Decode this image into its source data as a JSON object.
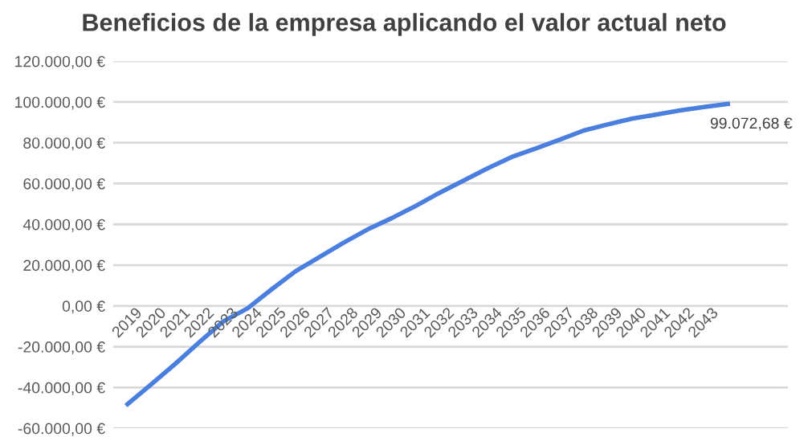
{
  "chart_data": {
    "type": "line",
    "title": "Beneficios de la empresa aplicando el valor actual neto",
    "categories": [
      "2019",
      "2020",
      "2021",
      "2022",
      "2023",
      "2024",
      "2025",
      "2026",
      "2027",
      "2028",
      "2029",
      "2030",
      "2031",
      "2032",
      "2033",
      "2034",
      "2035",
      "2036",
      "2037",
      "2038",
      "2039",
      "2040",
      "2041",
      "2042",
      "2043",
      null
    ],
    "series": [
      {
        "color": "#4a7fe0",
        "values": [
          -48200,
          -38300,
          -28300,
          -17700,
          -7500,
          -1200,
          8100,
          17000,
          24000,
          31000,
          37500,
          43000,
          49000,
          55500,
          61500,
          67500,
          73000,
          77200,
          81500,
          86000,
          89000,
          91800,
          93800,
          95800,
          97500,
          99072.68
        ],
        "value_labels": [
          null,
          null,
          null,
          null,
          null,
          null,
          null,
          null,
          null,
          null,
          null,
          null,
          null,
          null,
          null,
          null,
          null,
          null,
          null,
          null,
          null,
          null,
          null,
          null,
          null,
          "99.072,68 €"
        ]
      }
    ],
    "ylim": [
      -60000,
      120000
    ],
    "yticks": [
      {
        "value": -60000,
        "label": "-60.000,00 €"
      },
      {
        "value": -40000,
        "label": "-40.000,00 €"
      },
      {
        "value": -20000,
        "label": "-20.000,00 €"
      },
      {
        "value": 0,
        "label": "0,00 €"
      },
      {
        "value": 20000,
        "label": "20.000,00 €"
      },
      {
        "value": 40000,
        "label": "40.000,00 €"
      },
      {
        "value": 60000,
        "label": "60.000,00 €"
      },
      {
        "value": 80000,
        "label": "80.000,00 €"
      },
      {
        "value": 100000,
        "label": "100.000,00 €"
      },
      {
        "value": 120000,
        "label": "120.000,00 €"
      }
    ],
    "grid": "y",
    "marker": "none",
    "line_style": "solid",
    "legend": false
  }
}
